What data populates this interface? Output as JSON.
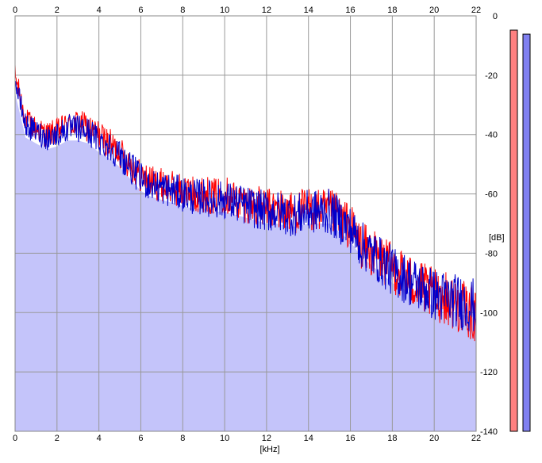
{
  "chart_data": {
    "type": "area",
    "xlabel": "[kHz]",
    "ylabel": "[dB]",
    "xlim": [
      0,
      22
    ],
    "ylim": [
      -140,
      0
    ],
    "x_ticks": [
      "0",
      "2",
      "4",
      "6",
      "8",
      "10",
      "12",
      "14",
      "16",
      "18",
      "20",
      "22"
    ],
    "y_ticks": [
      "0",
      "-20",
      "-40",
      "-60",
      "-80",
      "-100",
      "-120",
      "-140"
    ],
    "grid": true,
    "colors": {
      "left_channel": "#ff0000",
      "right_channel": "#0000cc",
      "fill": "#c4c4fa",
      "meter_left": "#ff8080",
      "meter_right": "#8080f0"
    },
    "x": [
      0,
      0.5,
      1,
      1.5,
      2,
      2.5,
      3,
      3.5,
      4,
      4.5,
      5,
      5.5,
      6,
      6.5,
      7,
      7.5,
      8,
      8.5,
      9,
      9.5,
      10,
      10.5,
      11,
      11.5,
      12,
      12.5,
      13,
      13.5,
      14,
      14.5,
      15,
      15.5,
      16,
      16.5,
      17,
      17.5,
      18,
      18.5,
      19,
      19.5,
      20,
      20.5,
      21,
      21.5,
      22
    ],
    "series": [
      {
        "values": [
          -20,
          -35,
          -38,
          -40,
          -39,
          -37,
          -36,
          -38,
          -40,
          -43,
          -46,
          -50,
          -54,
          -56,
          -57,
          -58,
          -59,
          -60,
          -60,
          -61,
          -60,
          -62,
          -63,
          -64,
          -65,
          -65,
          -66,
          -66,
          -65,
          -66,
          -66,
          -68,
          -71,
          -77,
          -80,
          -82,
          -85,
          -87,
          -90,
          -92,
          -94,
          -95,
          -97,
          -99,
          -101
        ]
      },
      {
        "values": [
          -22,
          -37,
          -39,
          -41,
          -40,
          -38,
          -38,
          -39,
          -42,
          -44,
          -47,
          -51,
          -55,
          -57,
          -58,
          -59,
          -60,
          -61,
          -61,
          -62,
          -62,
          -63,
          -64,
          -65,
          -66,
          -66,
          -67,
          -67,
          -66,
          -66,
          -66,
          -69,
          -72,
          -77,
          -80,
          -83,
          -86,
          -88,
          -90,
          -92,
          -94,
          -95,
          -96,
          -97,
          -98
        ]
      }
    ],
    "meters": {
      "left": 1.0,
      "right": 0.99
    }
  }
}
